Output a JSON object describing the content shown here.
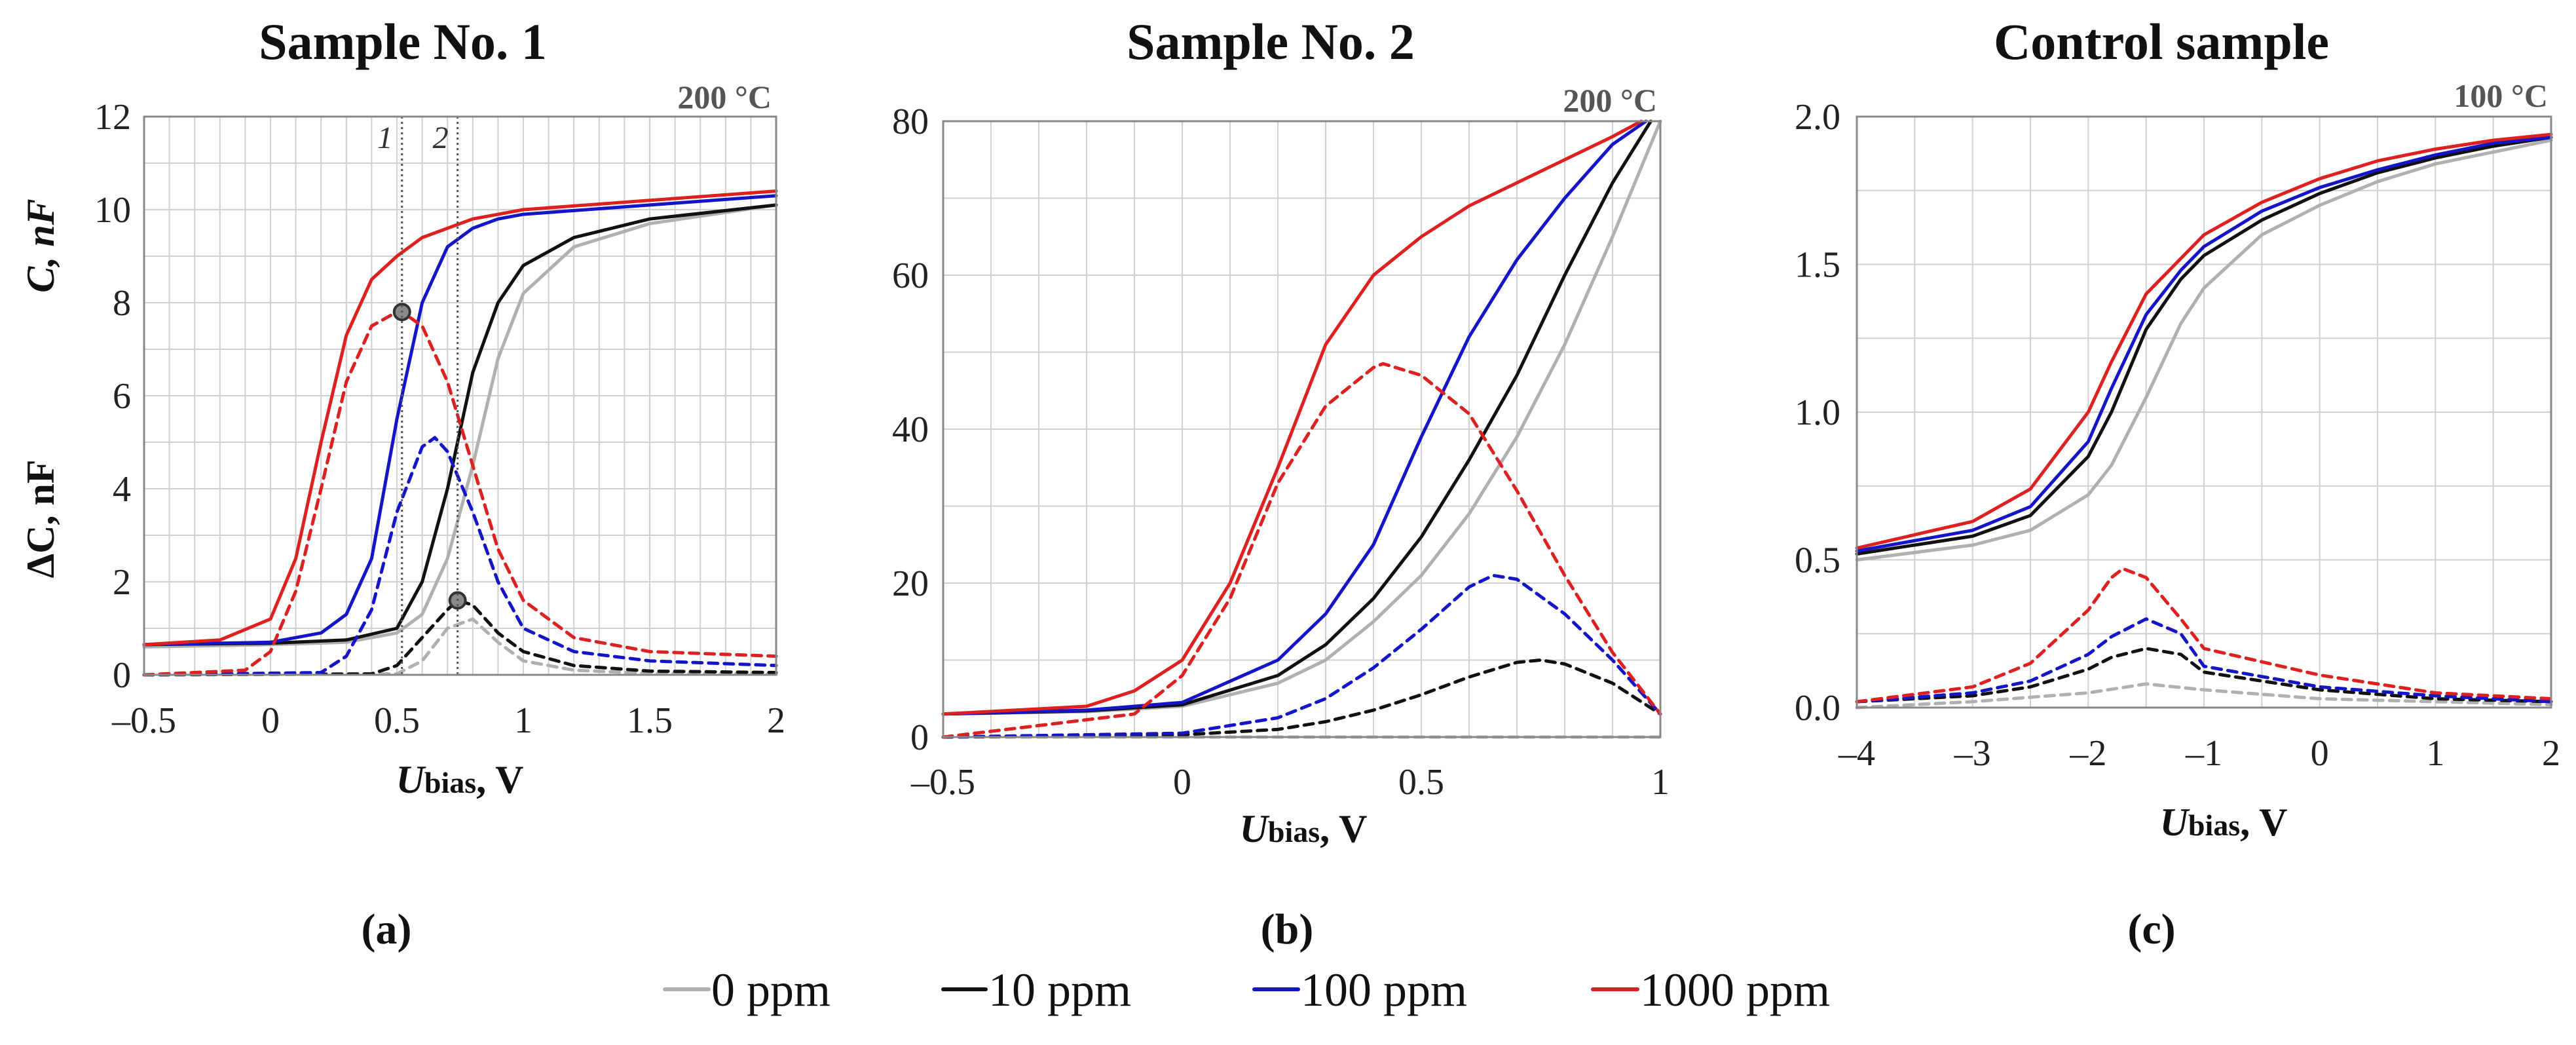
{
  "colors": {
    "0 ppm": "#b0b0b0",
    "10 ppm": "#111111",
    "100 ppm": "#1515c8",
    "1000 ppm": "#dd2020"
  },
  "legend": [
    "0 ppm",
    "10 ppm",
    "100 ppm",
    "1000 ppm"
  ],
  "chart_data": [
    {
      "type": "line",
      "panel_label": "(a)",
      "title": "Sample No. 1",
      "temperature": "200 °C",
      "xlabel": {
        "main": "U",
        "sub": "bias",
        "rest": ", V"
      },
      "ylabel_top": "C, nF",
      "ylabel_bottom": "ΔC, nF",
      "xlim": [
        -0.5,
        2
      ],
      "ylim": [
        0,
        12
      ],
      "xticks": [
        -0.5,
        0,
        0.5,
        1,
        1.5,
        2
      ],
      "xtick_labels": [
        "-0.5",
        "0",
        "0.5",
        "1",
        "1.5",
        "2"
      ],
      "yticks": [
        0,
        2,
        4,
        6,
        8,
        10,
        12
      ],
      "ytick_labels": [
        "0",
        "2",
        "4",
        "6",
        "8",
        "10",
        "12"
      ],
      "markers": [
        {
          "label": "1",
          "x": 0.52
        },
        {
          "label": "2",
          "x": 0.74
        }
      ],
      "points": [
        {
          "x": 0.52,
          "y": 7.8
        },
        {
          "x": 0.74,
          "y": 1.6
        }
      ],
      "series": [
        {
          "name": "0 ppm",
          "style": "solid",
          "x": [
            -0.5,
            0,
            0.3,
            0.5,
            0.6,
            0.7,
            0.8,
            0.9,
            1.0,
            1.2,
            1.5,
            2.0
          ],
          "y": [
            0.6,
            0.65,
            0.7,
            0.9,
            1.3,
            2.5,
            4.5,
            6.8,
            8.2,
            9.2,
            9.7,
            10.1
          ]
        },
        {
          "name": "10 ppm",
          "style": "solid",
          "x": [
            -0.5,
            0,
            0.3,
            0.5,
            0.6,
            0.7,
            0.8,
            0.9,
            1.0,
            1.2,
            1.5,
            2.0
          ],
          "y": [
            0.65,
            0.68,
            0.75,
            1.0,
            2.0,
            4.0,
            6.5,
            8.0,
            8.8,
            9.4,
            9.8,
            10.1
          ]
        },
        {
          "name": "100 ppm",
          "style": "solid",
          "x": [
            -0.5,
            0,
            0.2,
            0.3,
            0.4,
            0.5,
            0.6,
            0.7,
            0.8,
            0.9,
            1.0,
            1.5,
            2.0
          ],
          "y": [
            0.65,
            0.7,
            0.9,
            1.3,
            2.5,
            5.5,
            8.0,
            9.2,
            9.6,
            9.8,
            9.9,
            10.1,
            10.3
          ]
        },
        {
          "name": "1000 ppm",
          "style": "solid",
          "x": [
            -0.5,
            -0.2,
            0,
            0.1,
            0.2,
            0.3,
            0.4,
            0.5,
            0.6,
            0.7,
            0.8,
            1.0,
            1.5,
            2.0
          ],
          "y": [
            0.65,
            0.75,
            1.2,
            2.5,
            5.0,
            7.3,
            8.5,
            9.0,
            9.4,
            9.6,
            9.8,
            10.0,
            10.2,
            10.4
          ]
        },
        {
          "name": "0 ppm",
          "style": "dashed",
          "x": [
            -0.5,
            0.5,
            0.6,
            0.7,
            0.8,
            0.9,
            1.0,
            1.2,
            1.5,
            2.0
          ],
          "y": [
            0,
            0.02,
            0.3,
            1.0,
            1.2,
            0.7,
            0.3,
            0.1,
            0.03,
            0.02
          ]
        },
        {
          "name": "10 ppm",
          "style": "dashed",
          "x": [
            -0.5,
            0.4,
            0.5,
            0.6,
            0.7,
            0.74,
            0.8,
            0.9,
            1.0,
            1.2,
            1.5,
            2.0
          ],
          "y": [
            0,
            0.02,
            0.2,
            0.8,
            1.4,
            1.6,
            1.5,
            0.9,
            0.5,
            0.2,
            0.08,
            0.05
          ]
        },
        {
          "name": "100 ppm",
          "style": "dashed",
          "x": [
            -0.5,
            0.2,
            0.3,
            0.4,
            0.5,
            0.6,
            0.65,
            0.7,
            0.8,
            0.9,
            1.0,
            1.2,
            1.5,
            2.0
          ],
          "y": [
            0,
            0.05,
            0.4,
            1.4,
            3.5,
            4.9,
            5.1,
            4.8,
            3.5,
            2.0,
            1.0,
            0.5,
            0.3,
            0.2
          ]
        },
        {
          "name": "1000 ppm",
          "style": "dashed",
          "x": [
            -0.5,
            -0.1,
            0,
            0.1,
            0.2,
            0.3,
            0.4,
            0.5,
            0.52,
            0.6,
            0.7,
            0.8,
            0.9,
            1.0,
            1.2,
            1.5,
            2.0
          ],
          "y": [
            0,
            0.1,
            0.5,
            1.8,
            4.0,
            6.3,
            7.5,
            7.8,
            7.8,
            7.5,
            6.3,
            4.5,
            2.7,
            1.6,
            0.8,
            0.5,
            0.4
          ]
        }
      ]
    },
    {
      "type": "line",
      "panel_label": "(b)",
      "title": "Sample No. 2",
      "temperature": "200 °C",
      "xlabel": {
        "main": "U",
        "sub": "bias",
        "rest": ", V"
      },
      "xlim": [
        -0.5,
        1
      ],
      "ylim": [
        0,
        80
      ],
      "xticks": [
        -0.5,
        0,
        0.5,
        1
      ],
      "xtick_labels": [
        "-0.5",
        "0",
        "0.5",
        "1"
      ],
      "yticks": [
        0,
        20,
        40,
        60,
        80
      ],
      "ytick_labels": [
        "0",
        "20",
        "40",
        "60",
        "80"
      ],
      "series": [
        {
          "name": "0 ppm",
          "style": "solid",
          "x": [
            -0.5,
            -0.2,
            0,
            0.2,
            0.3,
            0.4,
            0.5,
            0.6,
            0.7,
            0.8,
            0.9,
            1.0
          ],
          "y": [
            3,
            3.3,
            4,
            7,
            10,
            15,
            21,
            29,
            39,
            51,
            65,
            80
          ]
        },
        {
          "name": "10 ppm",
          "style": "solid",
          "x": [
            -0.5,
            -0.2,
            0,
            0.2,
            0.3,
            0.4,
            0.5,
            0.6,
            0.7,
            0.8,
            0.9,
            0.98
          ],
          "y": [
            3,
            3.4,
            4.2,
            8,
            12,
            18,
            26,
            36,
            47,
            60,
            72,
            80
          ]
        },
        {
          "name": "100 ppm",
          "style": "solid",
          "x": [
            -0.5,
            -0.2,
            0,
            0.2,
            0.3,
            0.4,
            0.5,
            0.6,
            0.7,
            0.8,
            0.9,
            0.97
          ],
          "y": [
            3,
            3.5,
            4.5,
            10,
            16,
            25,
            39,
            52,
            62,
            70,
            77,
            80
          ]
        },
        {
          "name": "1000 ppm",
          "style": "solid",
          "x": [
            -0.5,
            -0.2,
            -0.1,
            0,
            0.1,
            0.2,
            0.3,
            0.4,
            0.5,
            0.6,
            0.7,
            0.8,
            0.9,
            0.96
          ],
          "y": [
            3,
            4,
            6,
            10,
            20,
            35,
            51,
            60,
            65,
            69,
            72,
            75,
            78,
            80
          ]
        },
        {
          "name": "0 ppm",
          "style": "dashed",
          "x": [
            -0.5,
            1.0
          ],
          "y": [
            0,
            0
          ]
        },
        {
          "name": "10 ppm",
          "style": "dashed",
          "x": [
            -0.5,
            0,
            0.2,
            0.3,
            0.4,
            0.5,
            0.6,
            0.7,
            0.75,
            0.8,
            0.9,
            1.0
          ],
          "y": [
            0,
            0.3,
            1.0,
            2.0,
            3.5,
            5.5,
            7.8,
            9.7,
            10.0,
            9.5,
            7.0,
            3.0
          ]
        },
        {
          "name": "100 ppm",
          "style": "dashed",
          "x": [
            -0.5,
            0,
            0.2,
            0.3,
            0.4,
            0.5,
            0.6,
            0.65,
            0.7,
            0.8,
            0.9,
            1.0
          ],
          "y": [
            0,
            0.5,
            2.5,
            5,
            9,
            14,
            19.5,
            21,
            20.5,
            16,
            10,
            3
          ]
        },
        {
          "name": "1000 ppm",
          "style": "dashed",
          "x": [
            -0.5,
            -0.1,
            0,
            0.1,
            0.2,
            0.3,
            0.4,
            0.42,
            0.5,
            0.6,
            0.7,
            0.8,
            0.9,
            1.0
          ],
          "y": [
            0,
            3,
            8,
            18,
            33,
            43,
            48,
            48.5,
            47,
            42,
            32,
            21,
            11,
            3
          ]
        }
      ]
    },
    {
      "type": "line",
      "panel_label": "(c)",
      "title": "Control sample",
      "temperature": "100 °C",
      "xlabel": {
        "main": "U",
        "sub": "bias",
        "rest": ", V"
      },
      "xlim": [
        -4,
        2
      ],
      "ylim": [
        0,
        2
      ],
      "xticks": [
        -4,
        -3,
        -2,
        -1,
        0,
        1,
        2
      ],
      "xtick_labels": [
        "-4",
        "-3",
        "-2",
        "-1",
        "0",
        "1",
        "2"
      ],
      "yticks": [
        0,
        0.5,
        1,
        1.5,
        2
      ],
      "ytick_labels": [
        "0.0",
        "0.5",
        "1.0",
        "1.5",
        "2.0"
      ],
      "series": [
        {
          "name": "0 ppm",
          "style": "solid",
          "x": [
            -4,
            -3,
            -2.5,
            -2,
            -1.8,
            -1.5,
            -1.2,
            -1,
            -0.5,
            0,
            0.5,
            1,
            1.5,
            2
          ],
          "y": [
            0.5,
            0.55,
            0.6,
            0.72,
            0.82,
            1.05,
            1.3,
            1.42,
            1.6,
            1.7,
            1.78,
            1.84,
            1.88,
            1.92
          ]
        },
        {
          "name": "10 ppm",
          "style": "solid",
          "x": [
            -4,
            -3,
            -2.5,
            -2,
            -1.8,
            -1.5,
            -1.2,
            -1,
            -0.5,
            0,
            0.5,
            1,
            1.5,
            2
          ],
          "y": [
            0.52,
            0.58,
            0.65,
            0.85,
            1.0,
            1.28,
            1.45,
            1.53,
            1.65,
            1.74,
            1.81,
            1.86,
            1.9,
            1.93
          ]
        },
        {
          "name": "100 ppm",
          "style": "solid",
          "x": [
            -4,
            -3,
            -2.5,
            -2,
            -1.8,
            -1.5,
            -1.2,
            -1,
            -0.5,
            0,
            0.5,
            1,
            1.5,
            2
          ],
          "y": [
            0.53,
            0.6,
            0.68,
            0.9,
            1.08,
            1.33,
            1.48,
            1.56,
            1.68,
            1.76,
            1.82,
            1.87,
            1.91,
            1.93
          ]
        },
        {
          "name": "1000 ppm",
          "style": "solid",
          "x": [
            -4,
            -3,
            -2.5,
            -2,
            -1.8,
            -1.5,
            -1.2,
            -1,
            -0.5,
            0,
            0.5,
            1,
            1.5,
            2
          ],
          "y": [
            0.54,
            0.63,
            0.74,
            1.0,
            1.17,
            1.4,
            1.52,
            1.6,
            1.71,
            1.79,
            1.85,
            1.89,
            1.92,
            1.94
          ]
        },
        {
          "name": "0 ppm",
          "style": "dashed",
          "x": [
            -4,
            -3,
            -2,
            -1.5,
            -1,
            0,
            1,
            2
          ],
          "y": [
            0,
            0.02,
            0.05,
            0.08,
            0.06,
            0.03,
            0.02,
            0.01
          ]
        },
        {
          "name": "10 ppm",
          "style": "dashed",
          "x": [
            -4,
            -3,
            -2.5,
            -2,
            -1.8,
            -1.5,
            -1.2,
            -1,
            0,
            1,
            2
          ],
          "y": [
            0.02,
            0.04,
            0.07,
            0.13,
            0.17,
            0.2,
            0.18,
            0.12,
            0.06,
            0.03,
            0.02
          ]
        },
        {
          "name": "100 ppm",
          "style": "dashed",
          "x": [
            -4,
            -3,
            -2.5,
            -2,
            -1.8,
            -1.5,
            -1.2,
            -1,
            0,
            1,
            2
          ],
          "y": [
            0.02,
            0.05,
            0.09,
            0.18,
            0.24,
            0.3,
            0.25,
            0.14,
            0.07,
            0.04,
            0.02
          ]
        },
        {
          "name": "1000 ppm",
          "style": "dashed",
          "x": [
            -4,
            -3,
            -2.5,
            -2,
            -1.8,
            -1.7,
            -1.5,
            -1.2,
            -1,
            0,
            1,
            2
          ],
          "y": [
            0.02,
            0.07,
            0.15,
            0.33,
            0.44,
            0.47,
            0.44,
            0.3,
            0.2,
            0.11,
            0.05,
            0.03
          ]
        }
      ]
    }
  ]
}
